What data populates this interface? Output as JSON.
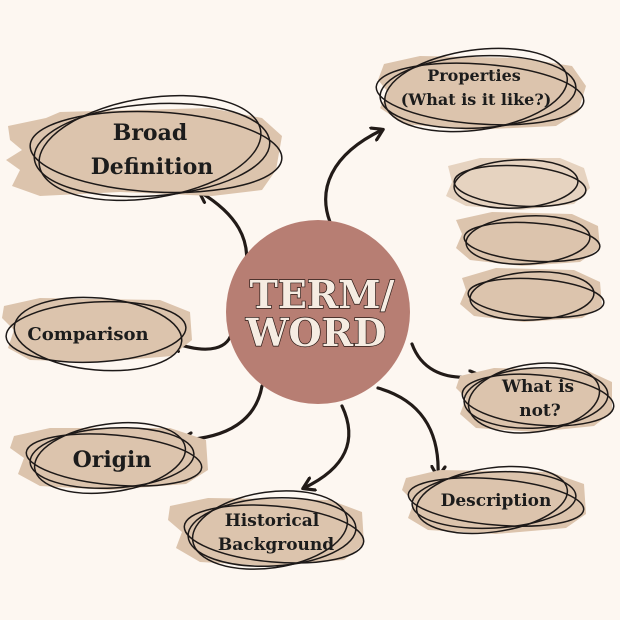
{
  "center": {
    "line1": "TERM/",
    "line2": "WORD"
  },
  "nodes": {
    "broad_definition": {
      "line1": "Broad",
      "line2": "Definition"
    },
    "properties": {
      "line1": "Properties",
      "line2": "(What is it like?)"
    },
    "comparison": {
      "text": "Comparison"
    },
    "origin": {
      "text": "Origin"
    },
    "historical_background": {
      "line1": "Historical",
      "line2": "Background"
    },
    "description": {
      "text": "Description"
    },
    "what_is_not": {
      "line1": "What is",
      "line2": "not?"
    }
  },
  "colors": {
    "background": "#fdf7f1",
    "node_fill": "#dcc4ad",
    "center_fill": "#b77e73",
    "ink": "#1c1c1c"
  }
}
